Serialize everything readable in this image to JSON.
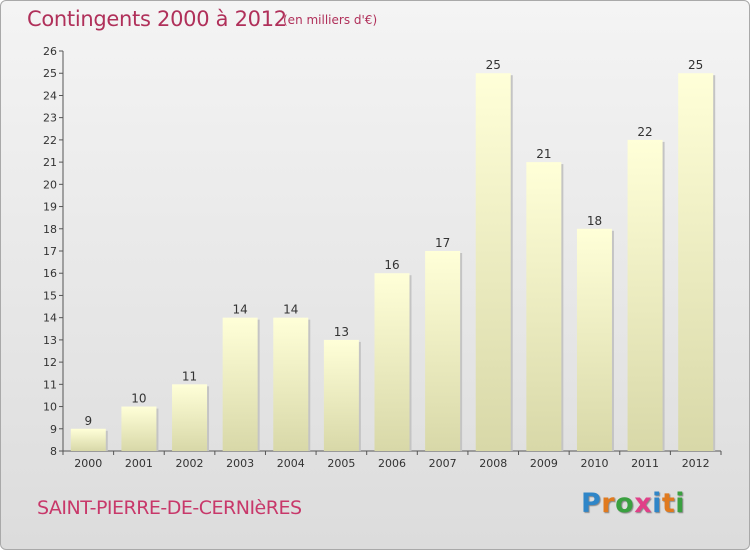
{
  "header": {
    "title": "Contingents 2000 à 2012",
    "subtitle": "(en milliers d'€)"
  },
  "footer": {
    "commune": "SAINT-PIERRE-DE-CERNIèRES",
    "logo_letters": [
      "P",
      "r",
      "o",
      "x",
      "i",
      "t",
      "i"
    ],
    "logo_colors": [
      "#2f86c8",
      "#e07a1f",
      "#3aa040",
      "#e04088",
      "#2f86c8",
      "#e07a1f",
      "#3aa040"
    ]
  },
  "chart_data": {
    "type": "bar",
    "categories": [
      "2000",
      "2001",
      "2002",
      "2003",
      "2004",
      "2005",
      "2006",
      "2007",
      "2008",
      "2009",
      "2010",
      "2011",
      "2012"
    ],
    "values": [
      9,
      10,
      11,
      14,
      14,
      13,
      16,
      17,
      25,
      21,
      18,
      22,
      25
    ],
    "title": "Contingents 2000 à 2012",
    "subtitle": "(en milliers d'€)",
    "ylim": [
      8,
      26
    ],
    "yticks": [
      8,
      9,
      10,
      11,
      12,
      13,
      14,
      15,
      16,
      17,
      18,
      19,
      20,
      21,
      22,
      23,
      24,
      25,
      26
    ],
    "grid": false,
    "bar_color_top": "#ffffd8",
    "bar_color_bottom": "#d8d8a8"
  }
}
